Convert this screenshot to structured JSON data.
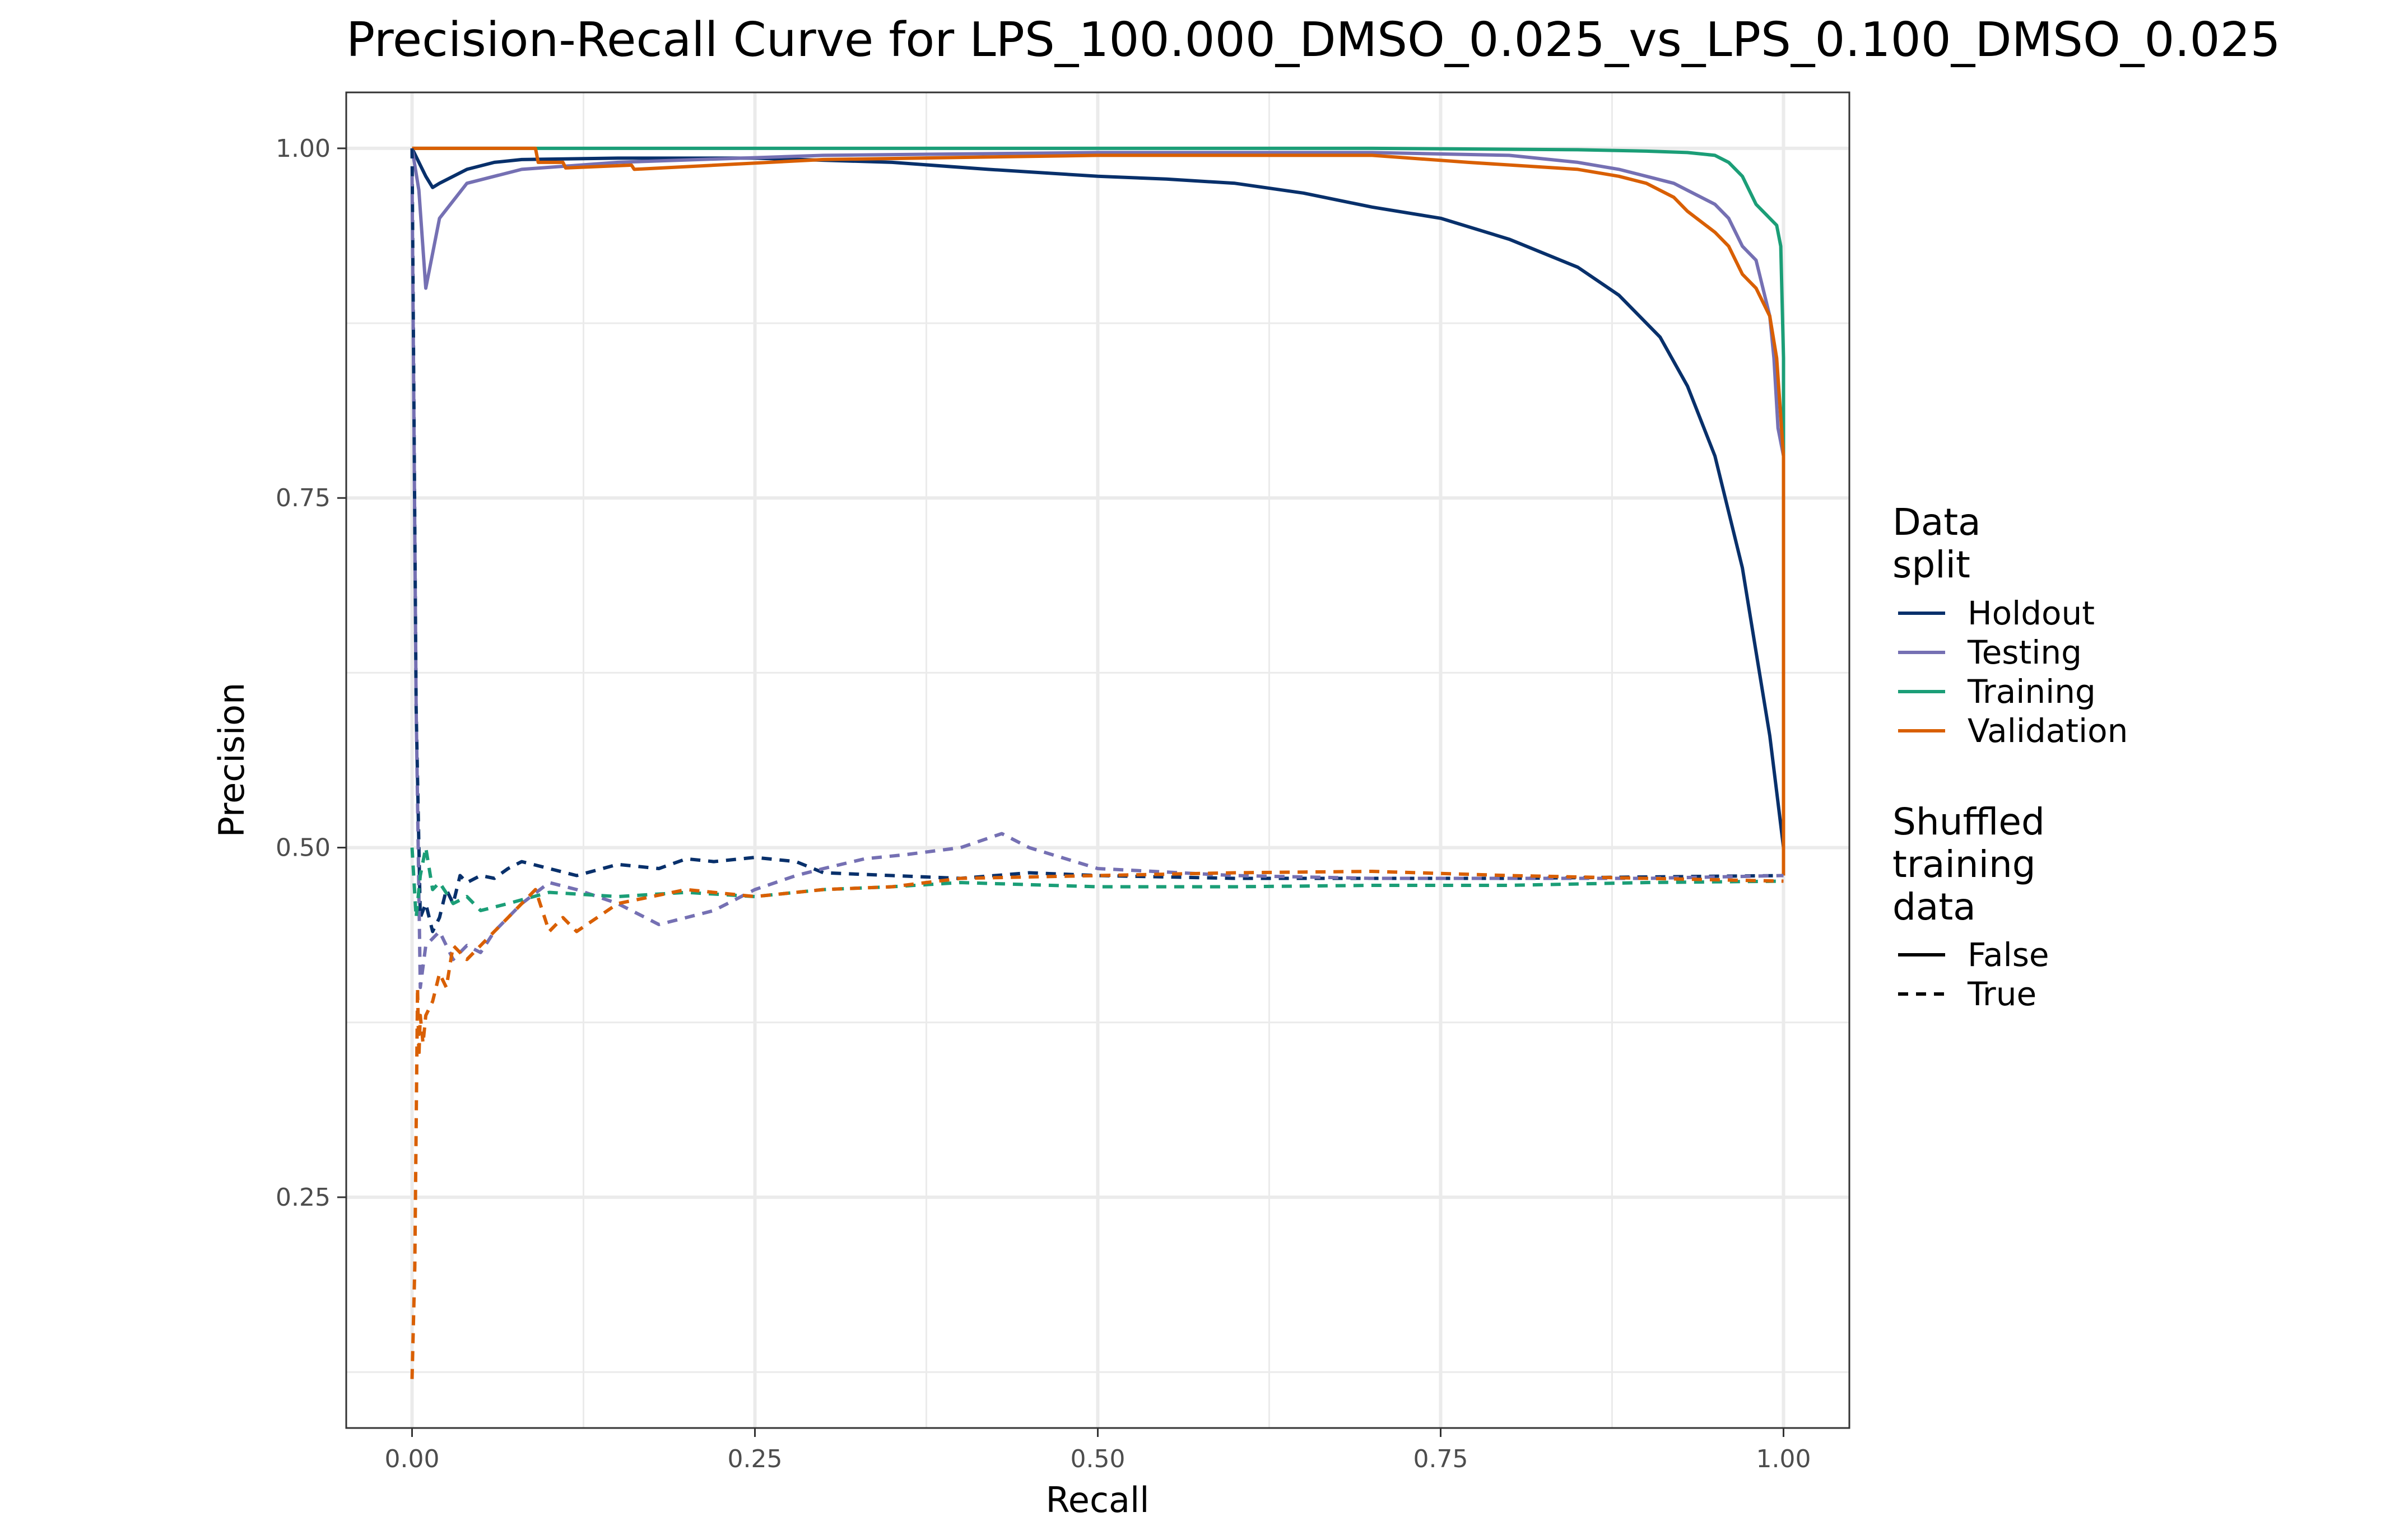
{
  "chart_data": {
    "type": "line",
    "title": "Precision-Recall Curve for LPS_100.000_DMSO_0.025_vs_LPS_0.100_DMSO_0.025",
    "xlabel": "Recall",
    "ylabel": "Precision",
    "xlim": [
      -0.048,
      1.048
    ],
    "ylim": [
      0.085,
      1.04
    ],
    "x_ticks": [
      "0.00",
      "0.25",
      "0.50",
      "0.75",
      "1.00"
    ],
    "x_tick_values": [
      0,
      0.25,
      0.5,
      0.75,
      1.0
    ],
    "y_ticks": [
      "0.25",
      "0.50",
      "0.75",
      "1.00"
    ],
    "y_tick_values": [
      0.25,
      0.5,
      0.75,
      1.0
    ],
    "grid": true,
    "legend_position": "right",
    "legend": {
      "color_title": [
        "Data",
        "split"
      ],
      "color_entries": [
        {
          "label": "Holdout",
          "color": "#08306b"
        },
        {
          "label": "Testing",
          "color": "#7570b3"
        },
        {
          "label": "Training",
          "color": "#1b9e77"
        },
        {
          "label": "Validation",
          "color": "#d95f02"
        }
      ],
      "linetype_title": [
        "Shuffled",
        "training",
        "data"
      ],
      "linetype_entries": [
        {
          "label": "False",
          "dash": "solid"
        },
        {
          "label": "True",
          "dash": "dashed"
        }
      ]
    },
    "series": [
      {
        "split": "Holdout",
        "shuffled": "False",
        "color": "#08306b",
        "dash": "solid",
        "x": [
          0,
          0.01,
          0.015,
          0.02,
          0.04,
          0.06,
          0.08,
          0.15,
          0.25,
          0.35,
          0.42,
          0.5,
          0.55,
          0.6,
          0.65,
          0.7,
          0.75,
          0.8,
          0.85,
          0.88,
          0.91,
          0.93,
          0.95,
          0.96,
          0.97,
          0.98,
          0.99,
          0.995,
          1.0,
          1.0
        ],
        "y": [
          1.0,
          0.98,
          0.972,
          0.975,
          0.985,
          0.99,
          0.992,
          0.993,
          0.993,
          0.99,
          0.985,
          0.98,
          0.978,
          0.975,
          0.968,
          0.958,
          0.95,
          0.935,
          0.915,
          0.895,
          0.865,
          0.83,
          0.78,
          0.74,
          0.7,
          0.64,
          0.58,
          0.54,
          0.5,
          0.48
        ]
      },
      {
        "split": "Testing",
        "shuffled": "False",
        "color": "#7570b3",
        "dash": "solid",
        "x": [
          0,
          0.005,
          0.01,
          0.02,
          0.04,
          0.08,
          0.15,
          0.3,
          0.5,
          0.7,
          0.8,
          0.85,
          0.88,
          0.9,
          0.92,
          0.93,
          0.95,
          0.96,
          0.97,
          0.98,
          0.99,
          0.993,
          0.996,
          1.0,
          1.0
        ],
        "y": [
          1.0,
          0.97,
          0.9,
          0.95,
          0.975,
          0.985,
          0.99,
          0.995,
          0.997,
          0.997,
          0.995,
          0.99,
          0.985,
          0.98,
          0.975,
          0.97,
          0.96,
          0.95,
          0.93,
          0.92,
          0.88,
          0.85,
          0.8,
          0.78,
          0.48
        ]
      },
      {
        "split": "Training",
        "shuffled": "False",
        "color": "#1b9e77",
        "dash": "solid",
        "x": [
          0,
          0.1,
          0.3,
          0.5,
          0.7,
          0.85,
          0.9,
          0.93,
          0.95,
          0.96,
          0.97,
          0.98,
          0.99,
          0.995,
          0.998,
          1.0,
          1.0
        ],
        "y": [
          1.0,
          1.0,
          1.0,
          1.0,
          1.0,
          0.999,
          0.998,
          0.997,
          0.995,
          0.99,
          0.98,
          0.96,
          0.95,
          0.945,
          0.93,
          0.85,
          0.48
        ]
      },
      {
        "split": "Validation",
        "shuffled": "False",
        "color": "#d95f02",
        "dash": "solid",
        "x": [
          0,
          0.09,
          0.092,
          0.11,
          0.112,
          0.16,
          0.162,
          0.3,
          0.5,
          0.7,
          0.77,
          0.85,
          0.88,
          0.9,
          0.92,
          0.93,
          0.95,
          0.96,
          0.97,
          0.98,
          0.99,
          0.995,
          1.0,
          1.0
        ],
        "y": [
          1.0,
          1.0,
          0.99,
          0.99,
          0.986,
          0.988,
          0.985,
          0.992,
          0.995,
          0.995,
          0.99,
          0.985,
          0.98,
          0.975,
          0.965,
          0.955,
          0.94,
          0.93,
          0.91,
          0.9,
          0.88,
          0.85,
          0.78,
          0.48
        ]
      },
      {
        "split": "Holdout",
        "shuffled": "True",
        "color": "#08306b",
        "dash": "dashed",
        "x": [
          0,
          0.003,
          0.006,
          0.01,
          0.015,
          0.02,
          0.025,
          0.03,
          0.035,
          0.04,
          0.05,
          0.06,
          0.07,
          0.08,
          0.1,
          0.12,
          0.15,
          0.18,
          0.2,
          0.22,
          0.25,
          0.28,
          0.3,
          0.35,
          0.4,
          0.45,
          0.5,
          0.6,
          0.7,
          0.8,
          0.9,
          1.0
        ],
        "y": [
          1.0,
          0.6,
          0.45,
          0.46,
          0.44,
          0.45,
          0.47,
          0.46,
          0.48,
          0.475,
          0.48,
          0.478,
          0.485,
          0.49,
          0.485,
          0.48,
          0.488,
          0.485,
          0.492,
          0.49,
          0.493,
          0.49,
          0.482,
          0.48,
          0.478,
          0.482,
          0.48,
          0.478,
          0.478,
          0.478,
          0.479,
          0.48
        ]
      },
      {
        "split": "Testing",
        "shuffled": "True",
        "color": "#7570b3",
        "dash": "dashed",
        "x": [
          0,
          0.003,
          0.006,
          0.01,
          0.02,
          0.03,
          0.04,
          0.05,
          0.06,
          0.08,
          0.1,
          0.12,
          0.15,
          0.18,
          0.2,
          0.22,
          0.25,
          0.28,
          0.3,
          0.33,
          0.36,
          0.4,
          0.43,
          0.45,
          0.5,
          0.6,
          0.7,
          0.8,
          0.9,
          1.0
        ],
        "y": [
          0.98,
          0.6,
          0.4,
          0.43,
          0.44,
          0.42,
          0.43,
          0.425,
          0.44,
          0.46,
          0.475,
          0.47,
          0.46,
          0.445,
          0.45,
          0.455,
          0.47,
          0.48,
          0.485,
          0.492,
          0.495,
          0.5,
          0.51,
          0.5,
          0.485,
          0.48,
          0.478,
          0.478,
          0.478,
          0.48
        ]
      },
      {
        "split": "Training",
        "shuffled": "True",
        "color": "#1b9e77",
        "dash": "dashed",
        "x": [
          0,
          0.003,
          0.006,
          0.01,
          0.015,
          0.02,
          0.03,
          0.04,
          0.05,
          0.07,
          0.1,
          0.15,
          0.2,
          0.25,
          0.3,
          0.35,
          0.4,
          0.5,
          0.6,
          0.7,
          0.8,
          0.9,
          1.0
        ],
        "y": [
          0.5,
          0.45,
          0.48,
          0.5,
          0.47,
          0.475,
          0.46,
          0.465,
          0.455,
          0.46,
          0.468,
          0.465,
          0.468,
          0.465,
          0.47,
          0.472,
          0.475,
          0.472,
          0.472,
          0.473,
          0.473,
          0.475,
          0.476
        ]
      },
      {
        "split": "Validation",
        "shuffled": "True",
        "color": "#d95f02",
        "dash": "dashed",
        "x": [
          0,
          0.002,
          0.003,
          0.004,
          0.005,
          0.006,
          0.008,
          0.01,
          0.015,
          0.02,
          0.025,
          0.03,
          0.04,
          0.05,
          0.06,
          0.07,
          0.08,
          0.09,
          0.1,
          0.11,
          0.12,
          0.15,
          0.2,
          0.25,
          0.3,
          0.35,
          0.4,
          0.5,
          0.6,
          0.7,
          0.8,
          0.9,
          1.0
        ],
        "y": [
          0.12,
          0.2,
          0.3,
          0.4,
          0.35,
          0.38,
          0.36,
          0.38,
          0.39,
          0.41,
          0.4,
          0.43,
          0.42,
          0.43,
          0.44,
          0.45,
          0.46,
          0.47,
          0.44,
          0.45,
          0.44,
          0.46,
          0.47,
          0.465,
          0.47,
          0.472,
          0.478,
          0.48,
          0.482,
          0.483,
          0.48,
          0.478,
          0.476
        ]
      }
    ]
  }
}
